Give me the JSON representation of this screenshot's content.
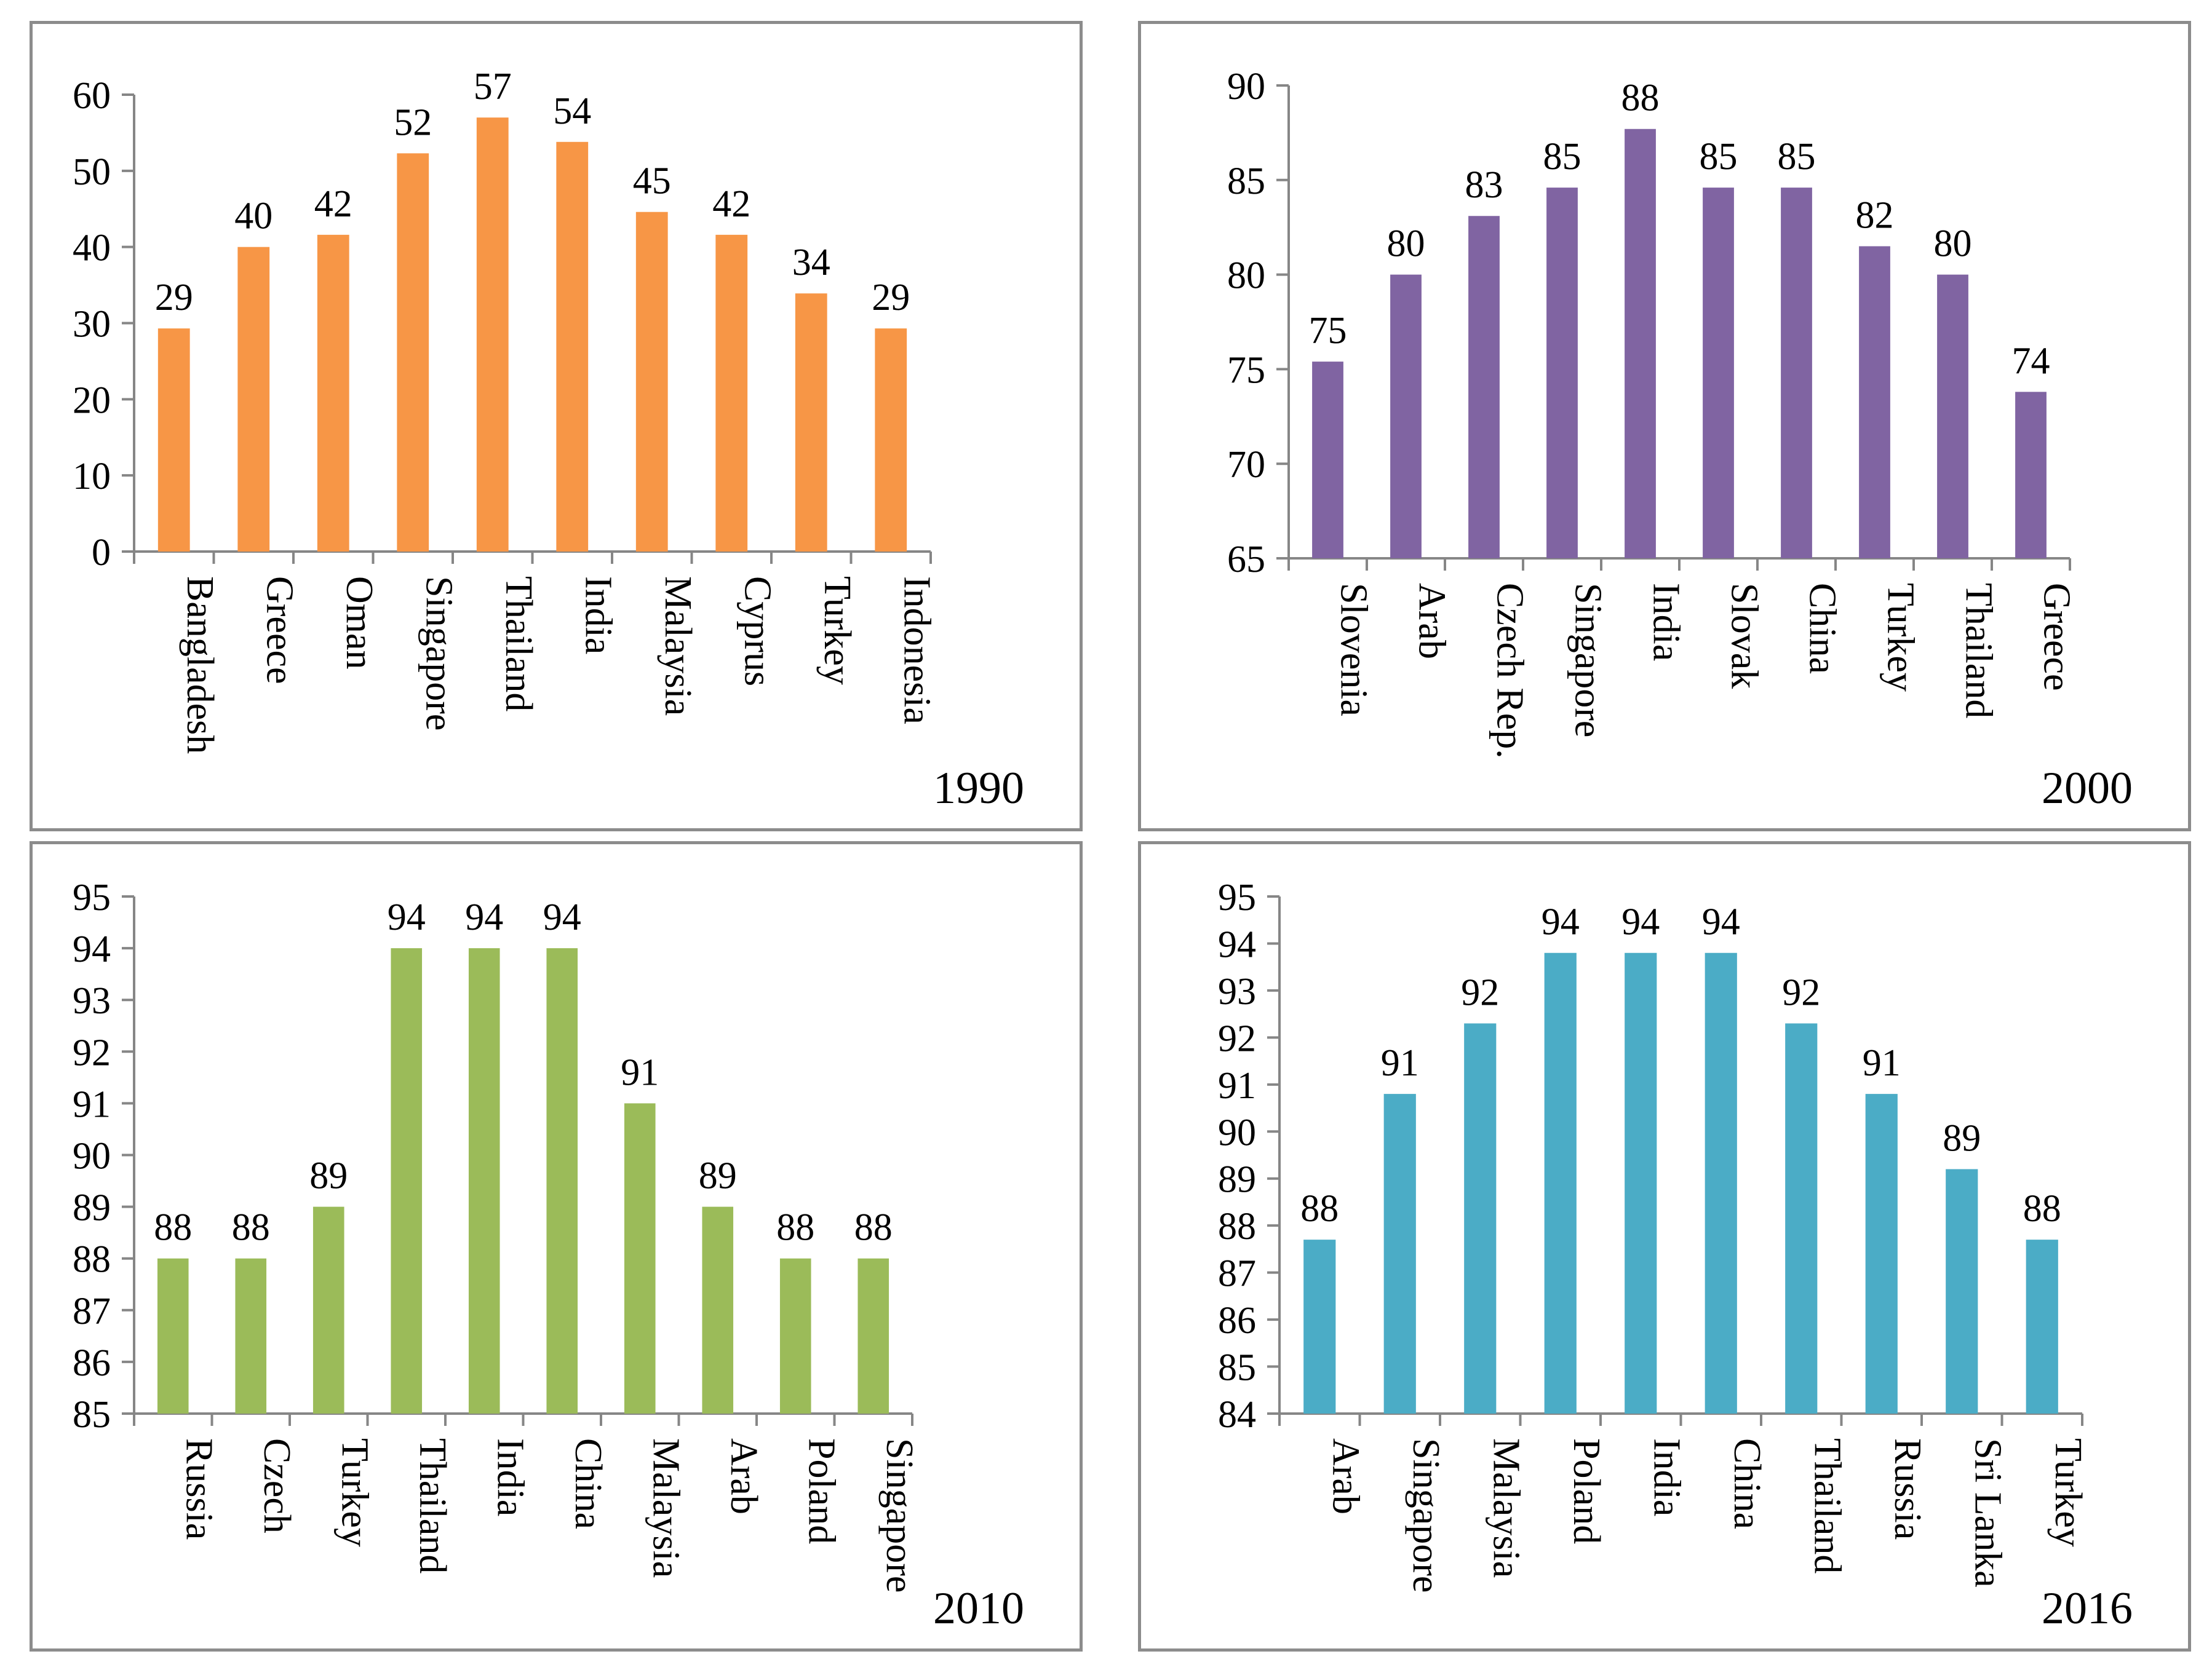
{
  "chart_data": [
    {
      "type": "bar",
      "year_label": "1990",
      "categories": [
        "Bangladesh",
        "Greece",
        "Oman",
        "Singapore",
        "Thailand",
        "India",
        "Malaysia",
        "Cyprus",
        "Turkey",
        "Indonesia"
      ],
      "values": [
        29,
        40,
        42,
        52,
        57,
        54,
        45,
        42,
        34,
        29
      ],
      "bar_values": [
        29.3,
        40,
        41.6,
        52.3,
        57,
        53.8,
        44.6,
        41.6,
        33.9,
        29.3
      ],
      "ylim": [
        0,
        60
      ],
      "yticks": [
        0,
        10,
        20,
        30,
        40,
        50,
        60
      ],
      "color": "#f79646",
      "grid": false
    },
    {
      "type": "bar",
      "year_label": "2000",
      "categories": [
        "Slovenia",
        "Arab",
        "Czech Rep.",
        "Singapore",
        "India",
        "Slovak",
        "China",
        "Turkey",
        "Thailand",
        "Greece"
      ],
      "values": [
        75,
        80,
        83,
        85,
        88,
        85,
        85,
        82,
        80,
        74
      ],
      "bar_values": [
        75.4,
        80,
        83.1,
        84.6,
        87.7,
        84.6,
        84.6,
        81.5,
        80,
        73.8
      ],
      "ylim": [
        65,
        90
      ],
      "yticks": [
        65,
        70,
        75,
        80,
        85,
        90
      ],
      "color": "#8064a2",
      "grid": false
    },
    {
      "type": "bar",
      "year_label": "2010",
      "categories": [
        "Russia",
        "Czech",
        "Turkey",
        "Thailand",
        "India",
        "China",
        "Malaysia",
        "Arab",
        "Poland",
        "Singapore"
      ],
      "values": [
        88,
        88,
        89,
        94,
        94,
        94,
        91,
        89,
        88,
        88
      ],
      "bar_values": [
        88,
        88,
        89,
        94,
        94,
        94,
        91,
        89,
        88,
        88
      ],
      "ylim": [
        85,
        95
      ],
      "yticks": [
        85,
        86,
        87,
        88,
        89,
        90,
        91,
        92,
        93,
        94,
        95
      ],
      "color": "#9bbb59",
      "grid": false
    },
    {
      "type": "bar",
      "year_label": "2016",
      "categories": [
        "Arab",
        "Singapore",
        "Malaysia",
        "Poland",
        "India",
        "China",
        "Thailand",
        "Russia",
        "Sri Lanka",
        "Turkey"
      ],
      "values": [
        88,
        91,
        92,
        94,
        94,
        94,
        92,
        91,
        89,
        88
      ],
      "bar_values": [
        87.7,
        90.8,
        92.3,
        93.8,
        93.8,
        93.8,
        92.3,
        90.8,
        89.2,
        87.7
      ],
      "ylim": [
        84,
        95
      ],
      "yticks": [
        84,
        85,
        86,
        87,
        88,
        89,
        90,
        91,
        92,
        93,
        94,
        95
      ],
      "color": "#4bacc6",
      "grid": false
    }
  ]
}
